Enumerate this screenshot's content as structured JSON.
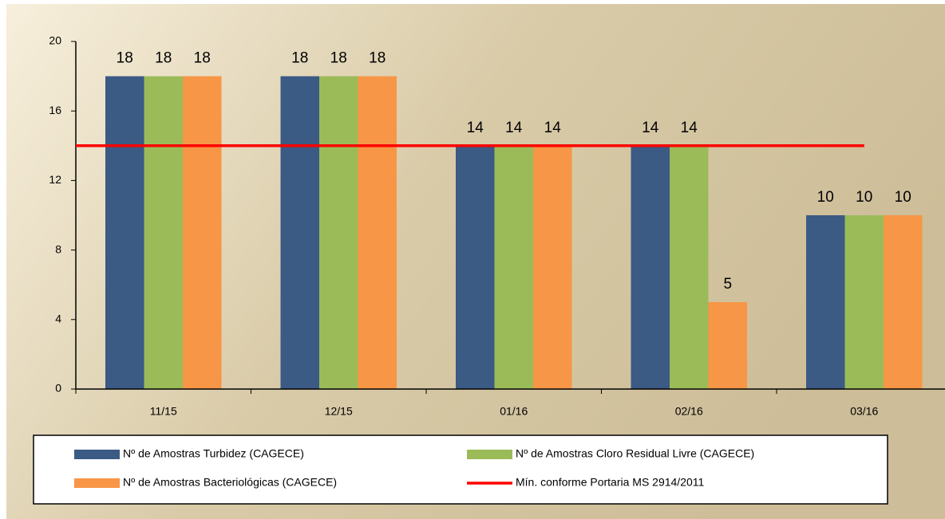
{
  "chart_data": {
    "type": "bar",
    "categories": [
      "11/15",
      "12/15",
      "01/16",
      "02/16",
      "03/16"
    ],
    "series": [
      {
        "name": "Nº de Amostras Turbidez (CAGECE)",
        "color": "#3b5a84",
        "values": [
          18,
          18,
          14,
          14,
          10
        ]
      },
      {
        "name": "Nº de Amostras Cloro Residual Livre (CAGECE)",
        "color": "#9bbb59",
        "values": [
          18,
          18,
          14,
          14,
          10
        ]
      },
      {
        "name": "Nº de Amostras Bacteriológicas (CAGECE)",
        "color": "#f79646",
        "values": [
          18,
          18,
          14,
          5,
          10
        ]
      }
    ],
    "reference_line": {
      "name": "Mín. conforme Portaria MS 2914/2011",
      "color": "#ff0000",
      "value": 14
    },
    "ylim": [
      0,
      20
    ],
    "yticks": [
      0,
      4,
      8,
      12,
      16,
      20
    ]
  }
}
